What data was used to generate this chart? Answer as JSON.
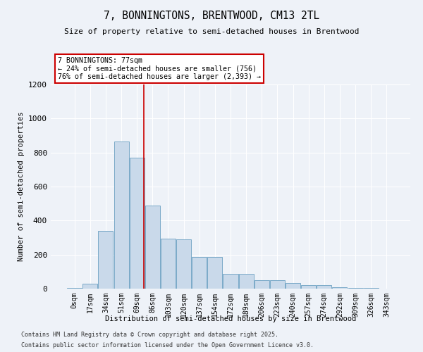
{
  "title": "7, BONNINGTONS, BRENTWOOD, CM13 2TL",
  "subtitle": "Size of property relative to semi-detached houses in Brentwood",
  "xlabel": "Distribution of semi-detached houses by size in Brentwood",
  "ylabel": "Number of semi-detached properties",
  "bar_color": "#c9d9ea",
  "bar_edge_color": "#7aaac8",
  "background_color": "#eef2f8",
  "grid_color": "#ffffff",
  "annotation_box_color": "#ffffff",
  "annotation_border_color": "#cc0000",
  "red_line_color": "#cc0000",
  "bins": [
    "0sqm",
    "17sqm",
    "34sqm",
    "51sqm",
    "69sqm",
    "86sqm",
    "103sqm",
    "120sqm",
    "137sqm",
    "154sqm",
    "172sqm",
    "189sqm",
    "206sqm",
    "223sqm",
    "240sqm",
    "257sqm",
    "274sqm",
    "292sqm",
    "309sqm",
    "326sqm",
    "343sqm"
  ],
  "values": [
    5,
    30,
    340,
    865,
    770,
    490,
    295,
    290,
    185,
    185,
    85,
    85,
    50,
    50,
    35,
    20,
    20,
    10,
    5,
    5,
    0
  ],
  "pct_smaller": 24,
  "pct_larger": 76,
  "n_smaller": 756,
  "n_larger": 2393,
  "highlight_bin_index": 4,
  "ylim": [
    0,
    1200
  ],
  "yticks": [
    0,
    200,
    400,
    600,
    800,
    1000,
    1200
  ],
  "footnote1": "Contains HM Land Registry data © Crown copyright and database right 2025.",
  "footnote2": "Contains public sector information licensed under the Open Government Licence v3.0."
}
